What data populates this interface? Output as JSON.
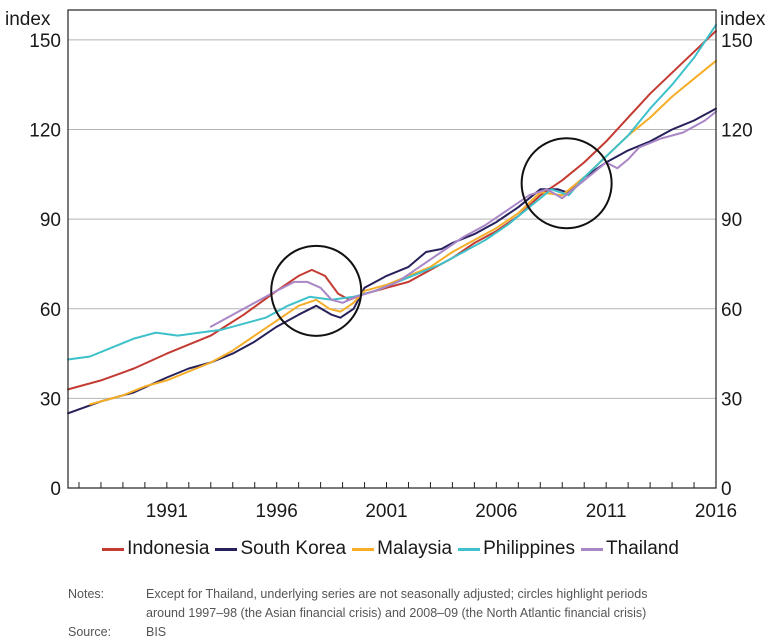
{
  "chart_data": {
    "type": "line",
    "y_unit_left": "index",
    "y_unit_right": "index",
    "ylim": [
      0,
      160
    ],
    "xlim": [
      1986.5,
      2016.0
    ],
    "y_ticks": [
      0,
      30,
      60,
      90,
      120,
      150
    ],
    "x_tick_labels": [
      {
        "year": 1991,
        "label": "1991"
      },
      {
        "year": 1996,
        "label": "1996"
      },
      {
        "year": 2001,
        "label": "2001"
      },
      {
        "year": 2006,
        "label": "2006"
      },
      {
        "year": 2011,
        "label": "2011"
      },
      {
        "year": 2016,
        "label": "2016"
      }
    ],
    "grid": "horizontal",
    "legend_position": "bottom",
    "circles": [
      {
        "x": 1997.8,
        "y": 66
      },
      {
        "x": 2009.2,
        "y": 102
      }
    ],
    "series": [
      {
        "name": "Indonesia",
        "color": "#c33b32",
        "points": [
          [
            1986.5,
            33
          ],
          [
            1988,
            36
          ],
          [
            1989.5,
            40
          ],
          [
            1991,
            45
          ],
          [
            1993,
            51
          ],
          [
            1994.5,
            58
          ],
          [
            1996,
            66
          ],
          [
            1997,
            71
          ],
          [
            1997.6,
            73
          ],
          [
            1998.2,
            71
          ],
          [
            1998.8,
            65
          ],
          [
            1999.3,
            63
          ],
          [
            2000,
            65
          ],
          [
            2001,
            67
          ],
          [
            2002,
            69
          ],
          [
            2003,
            73
          ],
          [
            2004,
            77
          ],
          [
            2005,
            82
          ],
          [
            2006,
            86
          ],
          [
            2007,
            91
          ],
          [
            2008,
            98
          ],
          [
            2009,
            103
          ],
          [
            2010,
            109
          ],
          [
            2011,
            116
          ],
          [
            2012,
            124
          ],
          [
            2013,
            132
          ],
          [
            2014,
            139
          ],
          [
            2015,
            146
          ],
          [
            2016,
            153
          ]
        ]
      },
      {
        "name": "South Korea",
        "color": "#27215b",
        "points": [
          [
            1986.5,
            25
          ],
          [
            1988,
            29
          ],
          [
            1989.5,
            32
          ],
          [
            1991,
            37
          ],
          [
            1992,
            40
          ],
          [
            1993,
            42
          ],
          [
            1994,
            45
          ],
          [
            1995,
            49
          ],
          [
            1996,
            54
          ],
          [
            1997,
            58
          ],
          [
            1997.8,
            61
          ],
          [
            1998.5,
            58
          ],
          [
            1998.9,
            57
          ],
          [
            1999.5,
            60
          ],
          [
            2000,
            67
          ],
          [
            2001,
            71
          ],
          [
            2002,
            74
          ],
          [
            2002.8,
            79
          ],
          [
            2003.5,
            80
          ],
          [
            2004,
            82
          ],
          [
            2005,
            85
          ],
          [
            2006,
            89
          ],
          [
            2007,
            94
          ],
          [
            2008,
            100
          ],
          [
            2008.8,
            100
          ],
          [
            2009.2,
            99
          ],
          [
            2010,
            104
          ],
          [
            2011,
            109
          ],
          [
            2012,
            113
          ],
          [
            2013,
            116
          ],
          [
            2014,
            120
          ],
          [
            2015,
            123
          ],
          [
            2016,
            127
          ]
        ]
      },
      {
        "name": "Malaysia",
        "color": "#f6ad28",
        "points": [
          [
            1987.5,
            28
          ],
          [
            1989,
            31
          ],
          [
            1990,
            34
          ],
          [
            1991,
            36
          ],
          [
            1992,
            39
          ],
          [
            1993,
            42
          ],
          [
            1994,
            46
          ],
          [
            1995,
            51
          ],
          [
            1996,
            56
          ],
          [
            1997,
            61
          ],
          [
            1997.8,
            63
          ],
          [
            1998.4,
            60
          ],
          [
            1998.9,
            59
          ],
          [
            1999.5,
            62
          ],
          [
            2000,
            66
          ],
          [
            2001,
            68
          ],
          [
            2002,
            71
          ],
          [
            2003,
            74
          ],
          [
            2004,
            79
          ],
          [
            2005,
            83
          ],
          [
            2006,
            87
          ],
          [
            2007,
            92
          ],
          [
            2008,
            99
          ],
          [
            2009,
            98
          ],
          [
            2010,
            104
          ],
          [
            2011,
            111
          ],
          [
            2012,
            118
          ],
          [
            2013,
            124
          ],
          [
            2014,
            131
          ],
          [
            2015,
            137
          ],
          [
            2016,
            143
          ]
        ]
      },
      {
        "name": "Philippines",
        "color": "#3ec1ca",
        "points": [
          [
            1986.5,
            43
          ],
          [
            1987.5,
            44
          ],
          [
            1988.5,
            47
          ],
          [
            1989.5,
            50
          ],
          [
            1990.5,
            52
          ],
          [
            1991.5,
            51
          ],
          [
            1992.5,
            52
          ],
          [
            1993.5,
            53
          ],
          [
            1994.5,
            55
          ],
          [
            1995.5,
            57
          ],
          [
            1996.5,
            61
          ],
          [
            1997.5,
            64
          ],
          [
            1998.5,
            63
          ],
          [
            1999.5,
            64
          ],
          [
            2000.5,
            66
          ],
          [
            2001.5,
            69
          ],
          [
            2002.5,
            72
          ],
          [
            2003.5,
            75
          ],
          [
            2004.5,
            79
          ],
          [
            2005.5,
            83
          ],
          [
            2006.5,
            88
          ],
          [
            2007.5,
            94
          ],
          [
            2008.5,
            100
          ],
          [
            2009.3,
            98
          ],
          [
            2010,
            104
          ],
          [
            2011,
            111
          ],
          [
            2012,
            118
          ],
          [
            2013,
            127
          ],
          [
            2014,
            135
          ],
          [
            2015,
            144
          ],
          [
            2016,
            155
          ]
        ]
      },
      {
        "name": "Thailand",
        "color": "#a986c6",
        "points": [
          [
            1993,
            54
          ],
          [
            1994,
            58
          ],
          [
            1995,
            62
          ],
          [
            1996,
            66
          ],
          [
            1996.8,
            69
          ],
          [
            1997.4,
            69
          ],
          [
            1998,
            67
          ],
          [
            1998.5,
            63
          ],
          [
            1999,
            62
          ],
          [
            1999.6,
            64
          ],
          [
            2000.5,
            66
          ],
          [
            2001.5,
            69
          ],
          [
            2002.5,
            74
          ],
          [
            2003.5,
            79
          ],
          [
            2004.5,
            84
          ],
          [
            2005.5,
            88
          ],
          [
            2006.5,
            93
          ],
          [
            2007.5,
            98
          ],
          [
            2008.3,
            100
          ],
          [
            2009,
            97
          ],
          [
            2010,
            103
          ],
          [
            2011,
            109
          ],
          [
            2011.5,
            107
          ],
          [
            2012,
            110
          ],
          [
            2012.5,
            114
          ],
          [
            2013.5,
            117
          ],
          [
            2014.5,
            119
          ],
          [
            2015.5,
            123
          ],
          [
            2016,
            126
          ]
        ]
      }
    ]
  },
  "notes": {
    "notes_label": "Notes:",
    "notes_line1": "Except for Thailand, underlying series are not seasonally adjusted; circles highlight periods",
    "notes_line2": "around 1997–98 (the Asian financial crisis) and 2008–09 (the North Atlantic financial crisis)",
    "source_label": "Source:",
    "source_text": "BIS"
  }
}
